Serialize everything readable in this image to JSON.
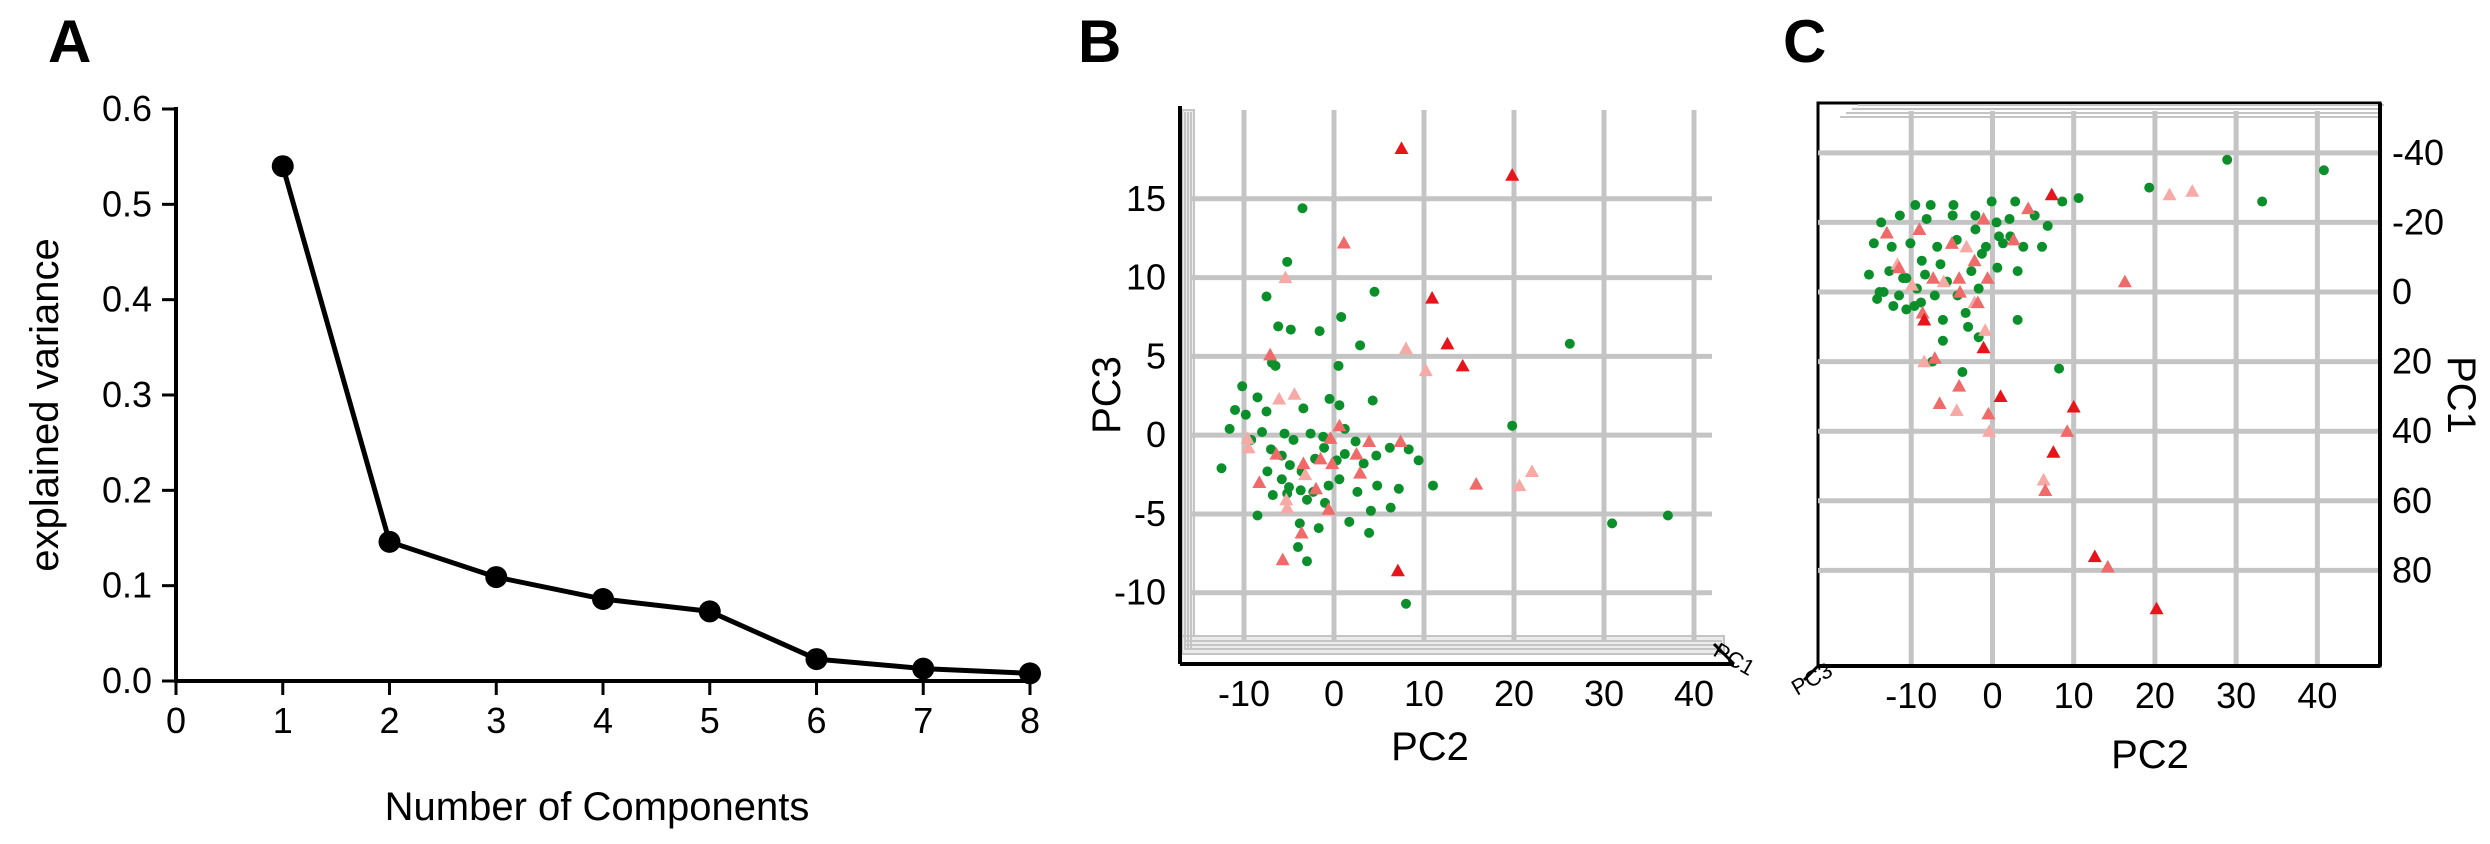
{
  "chart_data": [
    {
      "panel": "A",
      "type": "line",
      "title": "",
      "xlabel": "Number of Components",
      "ylabel": "explained variance",
      "xlim": [
        0,
        8
      ],
      "ylim": [
        0,
        0.6
      ],
      "x_ticks": [
        "0",
        "1",
        "2",
        "3",
        "4",
        "5",
        "6",
        "7",
        "8"
      ],
      "y_ticks": [
        "0.0",
        "0.1",
        "0.2",
        "0.3",
        "0.4",
        "0.5",
        "0.6"
      ],
      "x": [
        1,
        2,
        3,
        4,
        5,
        6,
        7,
        8
      ],
      "values": [
        0.54,
        0.146,
        0.109,
        0.086,
        0.073,
        0.023,
        0.013,
        0.008
      ],
      "color": "#000000",
      "grid": false
    },
    {
      "panel": "B",
      "type": "scatter",
      "xlabel": "PC2",
      "ylabel": "PC3",
      "depth_label": "PC1",
      "xlim": [
        -16,
        42
      ],
      "ylim": [
        -13,
        20
      ],
      "x_ticks": [
        -10,
        0,
        10,
        20,
        30,
        40
      ],
      "y_ticks": [
        -10,
        -5,
        0,
        5,
        10,
        15
      ],
      "grid": true,
      "colors": {
        "green": "#0a8f2a",
        "red": "#e8141a",
        "salmon": "#f06a6a",
        "pink": "#f7a9a5"
      },
      "series": [
        {
          "name": "green",
          "marker": "circle",
          "points": [
            [
              -3.5,
              14.4
            ],
            [
              -5.2,
              11
            ],
            [
              4.5,
              9.1
            ],
            [
              -7.5,
              8.8
            ],
            [
              -6.2,
              6.9
            ],
            [
              -4.8,
              6.7
            ],
            [
              -1.6,
              6.6
            ],
            [
              0.8,
              7.5
            ],
            [
              26.2,
              5.8
            ],
            [
              -6.5,
              4.4
            ],
            [
              0.5,
              4.4
            ],
            [
              2.9,
              5.7
            ],
            [
              -6.9,
              4.6
            ],
            [
              -10.2,
              3.1
            ],
            [
              -8.5,
              2.4
            ],
            [
              -11,
              1.6
            ],
            [
              -7.5,
              1.5
            ],
            [
              -9.8,
              1.3
            ],
            [
              -3.4,
              1.7
            ],
            [
              -0.5,
              2.3
            ],
            [
              0.6,
              1.9
            ],
            [
              4.3,
              2.2
            ],
            [
              19.8,
              0.6
            ],
            [
              -11.6,
              0.4
            ],
            [
              -8,
              0.2
            ],
            [
              -5.5,
              0.1
            ],
            [
              -4.5,
              -0.3
            ],
            [
              -2.6,
              0.1
            ],
            [
              -1.2,
              -0.1
            ],
            [
              1.2,
              0.4
            ],
            [
              2.4,
              -0.4
            ],
            [
              -9.2,
              -0.3
            ],
            [
              -7,
              -0.9
            ],
            [
              -5.8,
              -1.3
            ],
            [
              -4.9,
              -1.9
            ],
            [
              -3.6,
              -2.3
            ],
            [
              -2.1,
              -1.5
            ],
            [
              -1.1,
              -0.8
            ],
            [
              0.3,
              -1.6
            ],
            [
              1.2,
              -1.2
            ],
            [
              3.3,
              -1.8
            ],
            [
              4.7,
              -1.3
            ],
            [
              6.2,
              -0.8
            ],
            [
              8.3,
              -0.9
            ],
            [
              9.4,
              -1.6
            ],
            [
              -12.5,
              -2.1
            ],
            [
              -7.4,
              -2.3
            ],
            [
              -5.8,
              -2.8
            ],
            [
              -5,
              -3.3
            ],
            [
              -3.7,
              -3.5
            ],
            [
              -2.3,
              -3.6
            ],
            [
              -0.6,
              -3.2
            ],
            [
              0.6,
              -2.8
            ],
            [
              2.6,
              -3.6
            ],
            [
              4.8,
              -3.2
            ],
            [
              7.2,
              -3.4
            ],
            [
              11,
              -3.2
            ],
            [
              -6.8,
              -3.8
            ],
            [
              -5.2,
              -3.7
            ],
            [
              -3,
              -4.1
            ],
            [
              -1,
              -4.3
            ],
            [
              4.1,
              -4.8
            ],
            [
              6.3,
              -4.6
            ],
            [
              -8.5,
              -5.1
            ],
            [
              -3.8,
              -5.6
            ],
            [
              -1.7,
              -5.9
            ],
            [
              1.7,
              -5.5
            ],
            [
              3.9,
              -6.2
            ],
            [
              30.9,
              -5.6
            ],
            [
              37.1,
              -5.1
            ],
            [
              -4,
              -7.1
            ],
            [
              -3,
              -8
            ],
            [
              8,
              -10.7
            ]
          ]
        },
        {
          "name": "red",
          "marker": "triangle",
          "points": [
            [
              7.5,
              18.2
            ],
            [
              19.8,
              16.5
            ],
            [
              10.9,
              8.7
            ],
            [
              12.6,
              5.8
            ],
            [
              14.3,
              4.4
            ],
            [
              7.1,
              -8.6
            ]
          ]
        },
        {
          "name": "salmon",
          "marker": "triangle",
          "points": [
            [
              1.1,
              12.2
            ],
            [
              -7.1,
              5.1
            ],
            [
              0.6,
              0.6
            ],
            [
              -0.4,
              -0.2
            ],
            [
              3.9,
              -0.4
            ],
            [
              -6.4,
              -1.2
            ],
            [
              -1.5,
              -1.5
            ],
            [
              -0.2,
              -1.8
            ],
            [
              2.5,
              -1.2
            ],
            [
              7.4,
              -0.4
            ],
            [
              -8.3,
              -3
            ],
            [
              -3.4,
              -1.8
            ],
            [
              2.9,
              -2.4
            ],
            [
              15.8,
              -3.1
            ],
            [
              -3.6,
              -6.2
            ],
            [
              -5.7,
              -7.9
            ],
            [
              -2,
              -3.4
            ],
            [
              -0.6,
              -4.7
            ]
          ]
        },
        {
          "name": "pink",
          "marker": "triangle",
          "points": [
            [
              -5.4,
              10
            ],
            [
              -4.4,
              2.6
            ],
            [
              -6.1,
              2.3
            ],
            [
              -9.6,
              -0.2
            ],
            [
              -5.3,
              -4.1
            ],
            [
              -3.2,
              -2.5
            ],
            [
              8,
              5.5
            ],
            [
              10.2,
              4.1
            ],
            [
              20.6,
              -3.2
            ],
            [
              22,
              -2.3
            ],
            [
              -9.5,
              -0.8
            ],
            [
              -5.2,
              -4.6
            ]
          ]
        }
      ]
    },
    {
      "panel": "C",
      "type": "scatter",
      "xlabel": "PC2",
      "ylabel": "PC1",
      "depth_label": "PC3",
      "xlim": [
        -20,
        45
      ],
      "ylim": [
        -48,
        100
      ],
      "y_reversed": true,
      "x_ticks": [
        -10,
        0,
        10,
        20,
        30,
        40
      ],
      "y_ticks": [
        -40,
        -20,
        0,
        20,
        40,
        60,
        80
      ],
      "grid": true,
      "colors": {
        "green": "#0a8f2a",
        "red": "#e8141a",
        "salmon": "#f06a6a",
        "pink": "#f7a9a5"
      },
      "series": [
        {
          "name": "green",
          "marker": "circle",
          "points": [
            [
              -9.5,
              -25
            ],
            [
              -7.6,
              -25
            ],
            [
              -4.8,
              -25
            ],
            [
              -0.1,
              -26
            ],
            [
              2.8,
              -26
            ],
            [
              8.6,
              -26
            ],
            [
              10.6,
              -27
            ],
            [
              19.3,
              -30
            ],
            [
              28.9,
              -38
            ],
            [
              40.8,
              -35
            ],
            [
              33.2,
              -26
            ],
            [
              -13.7,
              -20
            ],
            [
              -11.4,
              -22
            ],
            [
              -8.1,
              -21
            ],
            [
              -4.9,
              -22
            ],
            [
              -2.1,
              -22
            ],
            [
              0.5,
              -20
            ],
            [
              2.1,
              -21
            ],
            [
              5.2,
              -22
            ],
            [
              6.8,
              -19
            ],
            [
              -14.6,
              -14
            ],
            [
              -12.4,
              -13
            ],
            [
              -10.1,
              -14
            ],
            [
              -6.8,
              -13
            ],
            [
              -4.4,
              -15
            ],
            [
              -0.8,
              -13
            ],
            [
              1.3,
              -14
            ],
            [
              3.8,
              -13
            ],
            [
              6.1,
              -13
            ],
            [
              -15.2,
              -5
            ],
            [
              -12.7,
              -6
            ],
            [
              -10.6,
              -4
            ],
            [
              -8.3,
              -5
            ],
            [
              -6.4,
              -8
            ],
            [
              -2.6,
              -6
            ],
            [
              0.6,
              -7
            ],
            [
              3.1,
              -6
            ],
            [
              -13.9,
              0
            ],
            [
              -11.5,
              1
            ],
            [
              -9.3,
              -1
            ],
            [
              -7.1,
              1
            ],
            [
              -4.3,
              1
            ],
            [
              -1.7,
              -1
            ],
            [
              -12.2,
              4
            ],
            [
              -10.6,
              5
            ],
            [
              -8.8,
              3
            ],
            [
              -3.3,
              6
            ],
            [
              3.1,
              8
            ],
            [
              -6.1,
              14
            ],
            [
              -7.4,
              20
            ],
            [
              -3.7,
              23
            ],
            [
              -1.7,
              13
            ],
            [
              -13.4,
              0
            ],
            [
              -11,
              -4
            ],
            [
              -8.7,
              -9
            ],
            [
              -5.6,
              -3
            ],
            [
              -1.3,
              -11
            ],
            [
              2.2,
              -16
            ],
            [
              -9.6,
              4
            ],
            [
              -14.2,
              2
            ],
            [
              -6.1,
              8
            ],
            [
              -3,
              10
            ],
            [
              8.2,
              22
            ],
            [
              -2.1,
              -18
            ],
            [
              0.8,
              -16
            ]
          ]
        },
        {
          "name": "red",
          "marker": "triangle",
          "points": [
            [
              7.3,
              -28
            ],
            [
              -8.4,
              8
            ],
            [
              -1.1,
              16
            ],
            [
              1,
              30
            ],
            [
              10,
              33
            ],
            [
              7.5,
              46
            ],
            [
              12.6,
              76
            ],
            [
              20.2,
              91
            ]
          ]
        },
        {
          "name": "salmon",
          "marker": "triangle",
          "points": [
            [
              -13,
              -17
            ],
            [
              -9,
              -18
            ],
            [
              -5,
              -14
            ],
            [
              -1.1,
              -21
            ],
            [
              4.4,
              -24
            ],
            [
              -11.5,
              -7
            ],
            [
              -7.3,
              -4
            ],
            [
              -4.1,
              -4
            ],
            [
              -2.2,
              -9
            ],
            [
              2.6,
              -15
            ],
            [
              -8.6,
              6
            ],
            [
              -4,
              0
            ],
            [
              -1.8,
              3
            ],
            [
              16.3,
              -3
            ],
            [
              -0.6,
              -4
            ],
            [
              -7.1,
              19
            ],
            [
              -4.1,
              27
            ],
            [
              -0.5,
              35
            ],
            [
              -6.5,
              32
            ],
            [
              9.2,
              40
            ],
            [
              6.5,
              57
            ],
            [
              14.2,
              79
            ]
          ]
        },
        {
          "name": "pink",
          "marker": "triangle",
          "points": [
            [
              -3.2,
              -13
            ],
            [
              -2.2,
              3
            ],
            [
              -8.4,
              20
            ],
            [
              -4.4,
              34
            ],
            [
              -0.4,
              40
            ],
            [
              6.3,
              54
            ],
            [
              21.8,
              -28
            ],
            [
              24.6,
              -29
            ],
            [
              -11.7,
              -8
            ],
            [
              -6,
              -3
            ],
            [
              -0.9,
              11
            ],
            [
              -9.9,
              -2
            ]
          ]
        }
      ]
    }
  ],
  "panel_labels": {
    "a": "A",
    "b": "B",
    "c": "C"
  }
}
